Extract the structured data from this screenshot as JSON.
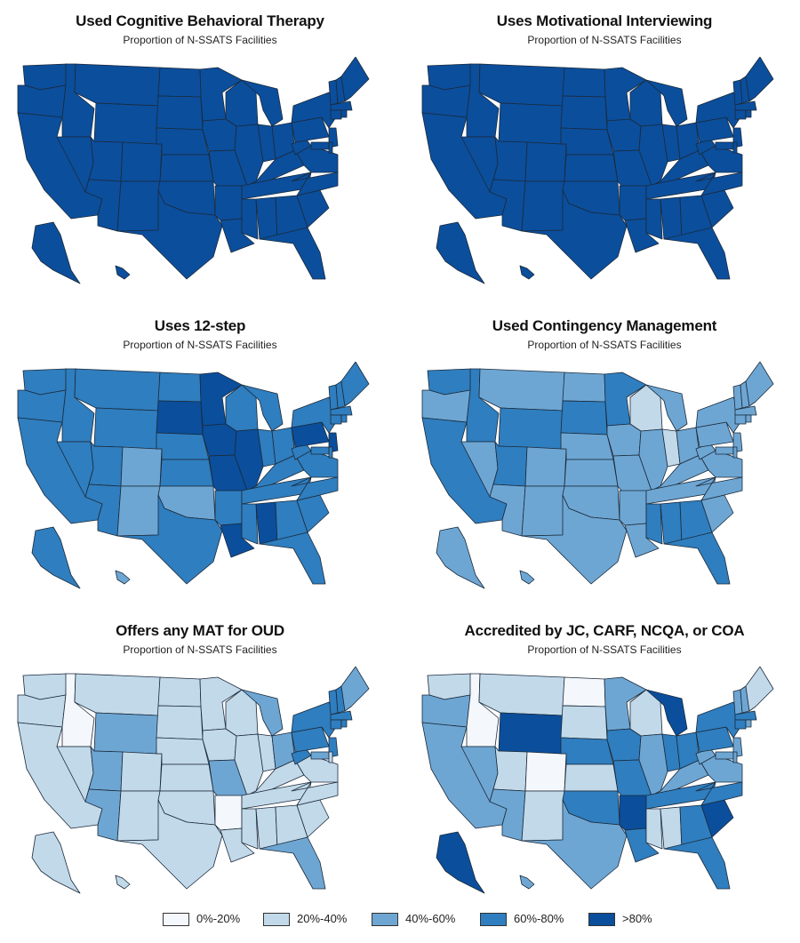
{
  "colors": {
    "0-20": "#f4f8fc",
    "20-40": "#c2d9ea",
    "40-60": "#6ea6d3",
    "60-80": "#2f7ebf",
    "80-100": "#0b4e9c",
    "border": "#1b2a3a"
  },
  "legend": [
    {
      "label": "0%-20%",
      "color_key": "0-20"
    },
    {
      "label": "20%-40%",
      "color_key": "20-40"
    },
    {
      "label": "40%-60%",
      "color_key": "40-60"
    },
    {
      "label": "60%-80%",
      "color_key": "60-80"
    },
    {
      "label": ">80%",
      "color_key": "80-100"
    }
  ],
  "panels": [
    {
      "title": "Used Cognitive Behavioral Therapy",
      "subtitle": "Proportion of N-SSATS Facilities",
      "default_class": "80-100",
      "overrides": {}
    },
    {
      "title": "Uses Motivational Interviewing",
      "subtitle": "Proportion of N-SSATS Facilities",
      "default_class": "80-100",
      "overrides": {}
    },
    {
      "title": "Uses 12-step",
      "subtitle": "Proportion of N-SSATS Facilities",
      "default_class": "60-80",
      "overrides": {
        "SD": "80-100",
        "MN": "80-100",
        "IA": "80-100",
        "MO": "80-100",
        "IL": "80-100",
        "PA": "80-100",
        "NJ": "80-100",
        "LA": "80-100",
        "AL": "80-100",
        "CO": "40-60",
        "NM": "40-60",
        "OK": "40-60",
        "HI": "40-60"
      }
    },
    {
      "title": "Used Contingency Management",
      "subtitle": "Proportion of N-SSATS Facilities",
      "default_class": "40-60",
      "overrides": {
        "WY": "60-80",
        "SD": "60-80",
        "MN": "60-80",
        "UT": "60-80",
        "CA": "60-80",
        "AL": "60-80",
        "GA": "60-80",
        "FL": "60-80",
        "MS": "60-80",
        "WA": "60-80",
        "ID": "60-80",
        "IN": "20-40",
        "WI": "20-40"
      }
    },
    {
      "title": "Offers any MAT for OUD",
      "subtitle": "Proportion of N-SSATS Facilities",
      "default_class": "20-40",
      "overrides": {
        "ID": "0-20",
        "AR": "0-20",
        "WY": "40-60",
        "UT": "40-60",
        "MO": "40-60",
        "OH": "40-60",
        "MD": "40-60",
        "FL": "40-60",
        "AZ": "40-60",
        "MI": "40-60",
        "PA": "60-80",
        "NY": "60-80",
        "VT": "60-80",
        "NH": "60-80",
        "MA": "60-80",
        "CT": "60-80",
        "RI": "60-80",
        "NJ": "60-80",
        "WV": "60-80",
        "ME": "40-60"
      }
    },
    {
      "title": "Accredited by JC, CARF, NCQA, or COA",
      "subtitle": "Proportion of N-SSATS Facilities",
      "default_class": "40-60",
      "overrides": {
        "WY": "80-100",
        "MI": "80-100",
        "AR": "80-100",
        "SC": "80-100",
        "AK": "80-100",
        "ND": "0-20",
        "ID": "0-20",
        "CO": "0-20",
        "MT": "20-40",
        "SD": "20-40",
        "KS": "20-40",
        "NM": "20-40",
        "AL": "20-40",
        "MS": "20-40",
        "UT": "20-40",
        "WI": "20-40",
        "ME": "20-40",
        "WA": "20-40",
        "NE": "60-80",
        "MO": "60-80",
        "OK": "60-80",
        "LA": "60-80",
        "GA": "60-80",
        "IN": "60-80",
        "OH": "60-80",
        "NC": "60-80",
        "TN": "60-80",
        "IA": "60-80",
        "FL": "60-80",
        "PA": "60-80",
        "NY": "60-80",
        "CT": "60-80",
        "MA": "60-80"
      }
    }
  ]
}
